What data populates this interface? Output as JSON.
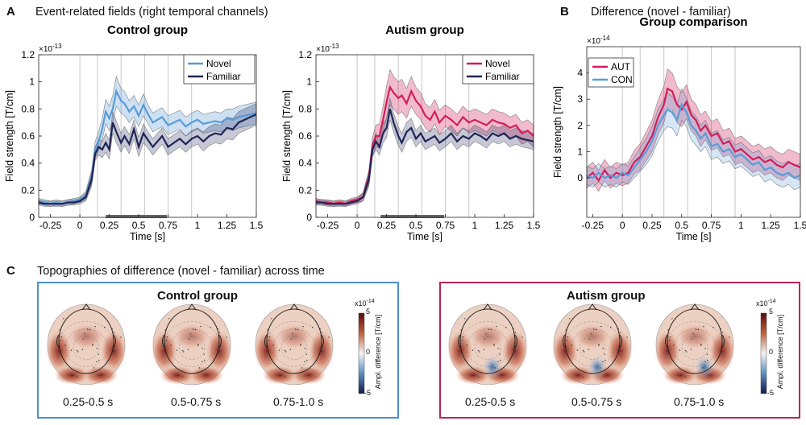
{
  "figure": {
    "panel_a": {
      "letter": "A",
      "title": "Event-related fields (right temporal channels)"
    },
    "panel_b": {
      "letter": "B",
      "title": "Difference (novel - familiar)"
    },
    "panel_c": {
      "letter": "C",
      "title": "Topographies of difference (novel - familiar) across time"
    }
  },
  "colors": {
    "novel_control": "#5a9bd6",
    "familiar": "#1f2456",
    "novel_autism": "#d11e5b",
    "aut": "#d11e5b",
    "con": "#5a9bd6",
    "control_box": "#4a8fd0",
    "autism_box": "#b8245a"
  },
  "chart_data": [
    {
      "id": "control",
      "type": "line",
      "title": "Control group",
      "xlabel": "Time [s]",
      "ylabel": "Field strength [T/cm]",
      "exponent": "×10",
      "exponent_power": "-13",
      "xlim": [
        -0.35,
        1.5
      ],
      "ylim": [
        0,
        1.2
      ],
      "xticks": [
        -0.25,
        0,
        0.25,
        0.5,
        0.75,
        1,
        1.25,
        1.5
      ],
      "xtick_labels": [
        "-0.25",
        "0",
        "0.25",
        "0.5",
        "0.75",
        "1",
        "1.25",
        "1.5"
      ],
      "yticks": [
        0,
        0.2,
        0.4,
        0.6,
        0.8,
        1,
        1.2
      ],
      "ytick_labels": [
        "0",
        "0.2",
        "0.4",
        "0.6",
        "0.8",
        "1",
        "1.2"
      ],
      "vlines": [
        0,
        0.15,
        0.35,
        0.55,
        0.75,
        0.95
      ],
      "sig_bar": [
        0.22,
        0.74
      ],
      "legend": [
        "Novel",
        "Familiar"
      ],
      "x": [
        -0.35,
        -0.3,
        -0.25,
        -0.2,
        -0.15,
        -0.1,
        -0.05,
        0,
        0.05,
        0.1,
        0.13,
        0.16,
        0.19,
        0.22,
        0.25,
        0.28,
        0.31,
        0.35,
        0.38,
        0.42,
        0.46,
        0.5,
        0.54,
        0.58,
        0.62,
        0.66,
        0.7,
        0.75,
        0.8,
        0.85,
        0.9,
        0.95,
        1,
        1.05,
        1.1,
        1.15,
        1.2,
        1.25,
        1.3,
        1.35,
        1.4,
        1.45,
        1.5
      ],
      "series": [
        {
          "name": "Novel",
          "values": [
            0.12,
            0.11,
            0.1,
            0.11,
            0.1,
            0.11,
            0.12,
            0.13,
            0.16,
            0.3,
            0.5,
            0.56,
            0.65,
            0.78,
            0.73,
            0.8,
            0.93,
            0.86,
            0.84,
            0.78,
            0.82,
            0.75,
            0.83,
            0.76,
            0.7,
            0.72,
            0.74,
            0.68,
            0.7,
            0.72,
            0.67,
            0.7,
            0.72,
            0.69,
            0.7,
            0.71,
            0.7,
            0.73,
            0.72,
            0.74,
            0.75,
            0.76,
            0.77
          ],
          "err": [
            0.02,
            0.02,
            0.02,
            0.02,
            0.02,
            0.02,
            0.02,
            0.02,
            0.03,
            0.05,
            0.06,
            0.07,
            0.08,
            0.09,
            0.09,
            0.1,
            0.11,
            0.09,
            0.09,
            0.08,
            0.08,
            0.08,
            0.08,
            0.07,
            0.07,
            0.07,
            0.07,
            0.07,
            0.07,
            0.07,
            0.07,
            0.07,
            0.07,
            0.07,
            0.07,
            0.07,
            0.07,
            0.07,
            0.08,
            0.08,
            0.08,
            0.08,
            0.08
          ]
        },
        {
          "name": "Familiar",
          "values": [
            0.11,
            0.1,
            0.1,
            0.1,
            0.1,
            0.11,
            0.11,
            0.12,
            0.15,
            0.28,
            0.47,
            0.52,
            0.5,
            0.55,
            0.5,
            0.7,
            0.63,
            0.55,
            0.6,
            0.54,
            0.65,
            0.52,
            0.62,
            0.57,
            0.52,
            0.56,
            0.6,
            0.52,
            0.55,
            0.58,
            0.54,
            0.58,
            0.6,
            0.56,
            0.6,
            0.62,
            0.61,
            0.66,
            0.65,
            0.7,
            0.72,
            0.74,
            0.76
          ],
          "err": [
            0.02,
            0.02,
            0.02,
            0.02,
            0.02,
            0.02,
            0.02,
            0.02,
            0.03,
            0.05,
            0.05,
            0.06,
            0.06,
            0.07,
            0.07,
            0.08,
            0.08,
            0.07,
            0.07,
            0.07,
            0.07,
            0.07,
            0.07,
            0.06,
            0.06,
            0.06,
            0.06,
            0.06,
            0.06,
            0.06,
            0.06,
            0.06,
            0.06,
            0.07,
            0.07,
            0.07,
            0.07,
            0.08,
            0.08,
            0.08,
            0.08,
            0.08,
            0.08
          ]
        }
      ]
    },
    {
      "id": "autism",
      "type": "line",
      "title": "Autism group",
      "xlabel": "Time [s]",
      "ylabel": "Field strength [T/cm]",
      "exponent": "×10",
      "exponent_power": "-13",
      "xlim": [
        -0.35,
        1.5
      ],
      "ylim": [
        0,
        1.2
      ],
      "xticks": [
        -0.25,
        0,
        0.25,
        0.5,
        0.75,
        1,
        1.25,
        1.5
      ],
      "xtick_labels": [
        "-0.25",
        "0",
        "0.25",
        "0.5",
        "0.75",
        "1",
        "1.25",
        "1.5"
      ],
      "yticks": [
        0,
        0.2,
        0.4,
        0.6,
        0.8,
        1,
        1.2
      ],
      "ytick_labels": [
        "0",
        "0.2",
        "0.4",
        "0.6",
        "0.8",
        "1",
        "1.2"
      ],
      "vlines": [
        0,
        0.15,
        0.35,
        0.55,
        0.75,
        0.95
      ],
      "sig_bar": [
        0.2,
        0.74
      ],
      "legend": [
        "Novel",
        "Familiar"
      ],
      "x": [
        -0.35,
        -0.3,
        -0.25,
        -0.2,
        -0.15,
        -0.1,
        -0.05,
        0,
        0.05,
        0.1,
        0.13,
        0.16,
        0.19,
        0.22,
        0.25,
        0.28,
        0.31,
        0.35,
        0.38,
        0.42,
        0.46,
        0.5,
        0.54,
        0.58,
        0.62,
        0.66,
        0.7,
        0.75,
        0.8,
        0.85,
        0.9,
        0.95,
        1,
        1.05,
        1.1,
        1.15,
        1.2,
        1.25,
        1.3,
        1.35,
        1.4,
        1.45,
        1.5
      ],
      "series": [
        {
          "name": "Novel",
          "values": [
            0.12,
            0.11,
            0.11,
            0.1,
            0.11,
            0.1,
            0.12,
            0.13,
            0.15,
            0.3,
            0.52,
            0.6,
            0.6,
            0.72,
            0.85,
            0.96,
            0.92,
            0.88,
            0.9,
            0.84,
            0.93,
            0.86,
            0.82,
            0.75,
            0.72,
            0.78,
            0.7,
            0.75,
            0.72,
            0.68,
            0.74,
            0.7,
            0.72,
            0.7,
            0.68,
            0.72,
            0.7,
            0.69,
            0.66,
            0.68,
            0.62,
            0.64,
            0.6
          ],
          "err": [
            0.02,
            0.02,
            0.02,
            0.02,
            0.02,
            0.02,
            0.02,
            0.02,
            0.03,
            0.05,
            0.07,
            0.08,
            0.09,
            0.1,
            0.12,
            0.13,
            0.12,
            0.12,
            0.12,
            0.11,
            0.11,
            0.1,
            0.1,
            0.09,
            0.09,
            0.09,
            0.09,
            0.08,
            0.08,
            0.08,
            0.08,
            0.08,
            0.08,
            0.08,
            0.08,
            0.08,
            0.08,
            0.08,
            0.08,
            0.08,
            0.08,
            0.08,
            0.08
          ]
        },
        {
          "name": "Familiar",
          "values": [
            0.11,
            0.11,
            0.1,
            0.1,
            0.1,
            0.1,
            0.11,
            0.12,
            0.15,
            0.28,
            0.5,
            0.56,
            0.52,
            0.62,
            0.66,
            0.8,
            0.7,
            0.6,
            0.55,
            0.63,
            0.66,
            0.58,
            0.62,
            0.56,
            0.58,
            0.6,
            0.55,
            0.58,
            0.62,
            0.56,
            0.6,
            0.58,
            0.62,
            0.6,
            0.57,
            0.62,
            0.6,
            0.62,
            0.58,
            0.6,
            0.58,
            0.57,
            0.56
          ],
          "err": [
            0.02,
            0.02,
            0.02,
            0.02,
            0.02,
            0.02,
            0.02,
            0.02,
            0.03,
            0.05,
            0.05,
            0.06,
            0.06,
            0.07,
            0.07,
            0.08,
            0.07,
            0.07,
            0.07,
            0.07,
            0.07,
            0.06,
            0.06,
            0.06,
            0.06,
            0.06,
            0.06,
            0.06,
            0.06,
            0.06,
            0.06,
            0.06,
            0.06,
            0.06,
            0.06,
            0.06,
            0.06,
            0.06,
            0.06,
            0.06,
            0.06,
            0.06,
            0.06
          ]
        }
      ]
    },
    {
      "id": "comparison",
      "type": "line",
      "title": "Group comparison",
      "xlabel": "Time [s]",
      "ylabel": "Field strength [T/cm]",
      "exponent": "×10",
      "exponent_power": "-14",
      "xlim": [
        -0.3,
        1.5
      ],
      "ylim": [
        -1.5,
        5
      ],
      "xticks": [
        -0.25,
        0,
        0.25,
        0.5,
        0.75,
        1,
        1.25,
        1.5
      ],
      "xtick_labels": [
        "-0.25",
        "0",
        "0.25",
        "0.5",
        "0.75",
        "1",
        "1.25",
        "1.5"
      ],
      "yticks": [
        0,
        1,
        2,
        3,
        4
      ],
      "ytick_labels": [
        "0",
        "1",
        "2",
        "3",
        "4"
      ],
      "vlines": [
        0,
        0.15,
        0.35,
        0.55,
        0.75,
        0.95
      ],
      "sig_bar": null,
      "legend": [
        "AUT",
        "CON"
      ],
      "x": [
        -0.3,
        -0.25,
        -0.2,
        -0.15,
        -0.1,
        -0.05,
        0,
        0.05,
        0.1,
        0.15,
        0.2,
        0.25,
        0.3,
        0.35,
        0.38,
        0.42,
        0.46,
        0.5,
        0.54,
        0.58,
        0.62,
        0.66,
        0.7,
        0.75,
        0.8,
        0.85,
        0.9,
        0.95,
        1,
        1.05,
        1.1,
        1.15,
        1.2,
        1.25,
        1.3,
        1.35,
        1.4,
        1.45,
        1.5
      ],
      "series": [
        {
          "name": "AUT",
          "values": [
            0,
            0.2,
            -0.1,
            0.3,
            0,
            0.2,
            0.1,
            0.2,
            0.6,
            0.8,
            1.2,
            1.6,
            2.3,
            2.8,
            3.4,
            3.3,
            2.8,
            2.6,
            2.9,
            2.4,
            2.2,
            1.8,
            2.0,
            1.6,
            1.7,
            1.3,
            1.4,
            1.0,
            1.1,
            0.9,
            0.7,
            0.8,
            0.6,
            0.7,
            0.5,
            0.4,
            0.6,
            0.5,
            0.4
          ],
          "err": [
            0.4,
            0.4,
            0.4,
            0.4,
            0.4,
            0.4,
            0.4,
            0.4,
            0.45,
            0.5,
            0.55,
            0.6,
            0.65,
            0.7,
            0.75,
            0.7,
            0.7,
            0.65,
            0.65,
            0.6,
            0.6,
            0.6,
            0.55,
            0.55,
            0.55,
            0.5,
            0.5,
            0.5,
            0.5,
            0.5,
            0.5,
            0.5,
            0.5,
            0.5,
            0.5,
            0.5,
            0.5,
            0.5,
            0.5
          ]
        },
        {
          "name": "CON",
          "values": [
            0.1,
            0,
            0.2,
            0,
            0.1,
            0,
            0.2,
            0.1,
            0.4,
            0.7,
            1.0,
            1.4,
            2.0,
            2.4,
            2.6,
            2.5,
            2.2,
            2.8,
            2.5,
            2.0,
            1.8,
            1.5,
            1.7,
            1.2,
            1.3,
            1.0,
            1.1,
            0.8,
            0.9,
            0.7,
            0.5,
            0.6,
            0.3,
            0.4,
            0.2,
            0.1,
            0.2,
            0,
            0.1
          ],
          "err": [
            0.35,
            0.35,
            0.35,
            0.35,
            0.35,
            0.35,
            0.35,
            0.35,
            0.4,
            0.45,
            0.5,
            0.55,
            0.6,
            0.6,
            0.65,
            0.6,
            0.6,
            0.6,
            0.55,
            0.55,
            0.55,
            0.5,
            0.5,
            0.5,
            0.5,
            0.45,
            0.45,
            0.45,
            0.45,
            0.45,
            0.45,
            0.45,
            0.45,
            0.45,
            0.45,
            0.45,
            0.45,
            0.45,
            0.45
          ]
        }
      ]
    }
  ],
  "topographies": {
    "control": {
      "title": "Control group",
      "windows": [
        "0.25-0.5 s",
        "0.5-0.75 s",
        "0.75-1.0 s"
      ]
    },
    "autism": {
      "title": "Autism group",
      "windows": [
        "0.25-0.5 s",
        "0.5-0.75 s",
        "0.75-1.0 s"
      ]
    },
    "colorbar": {
      "exponent": "x10",
      "exponent_power": "-14",
      "label": "Ampl. difference [T/cm]",
      "ticks": [
        "5",
        "0",
        "-5"
      ]
    }
  }
}
